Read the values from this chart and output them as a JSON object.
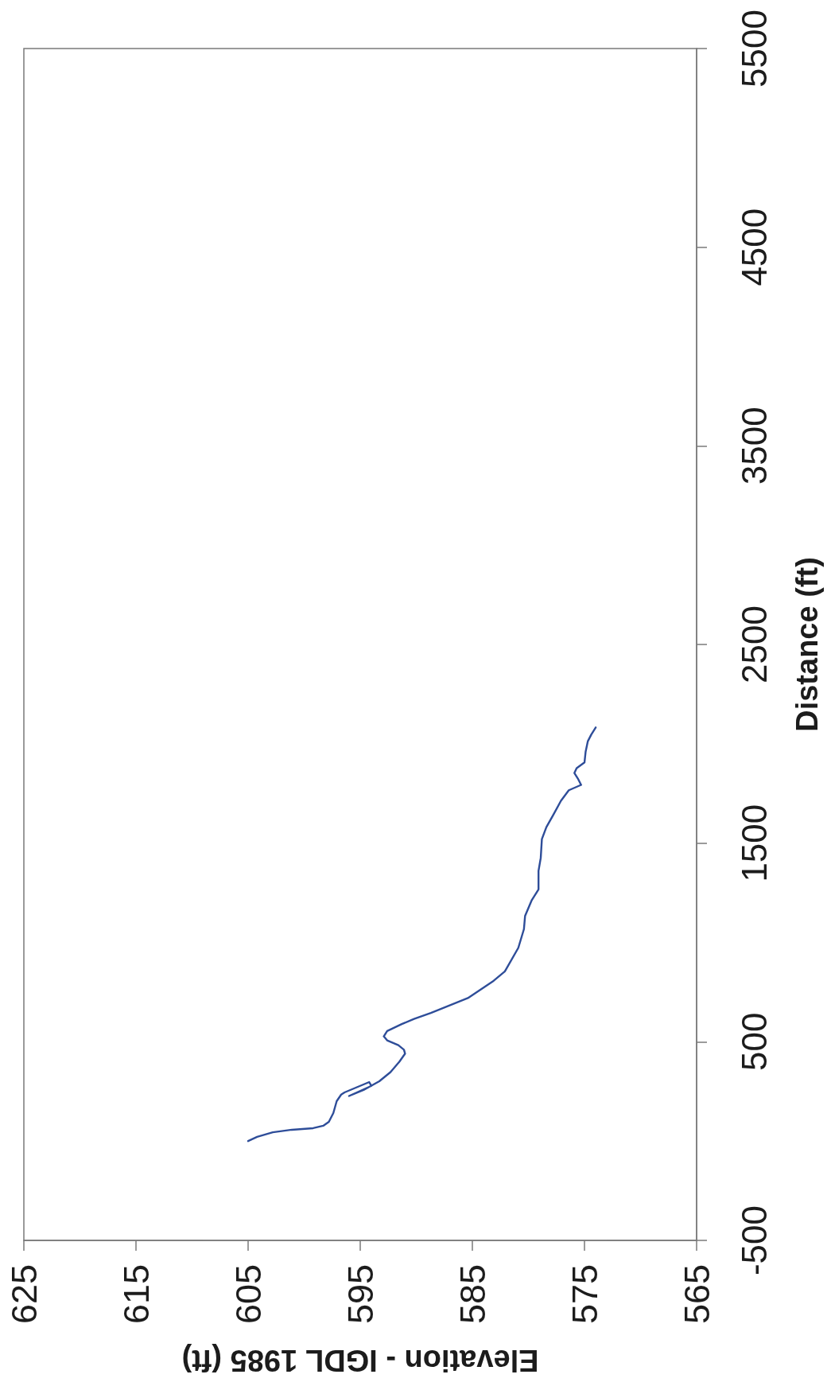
{
  "chart_data": {
    "type": "line",
    "xlabel": "Elevation - IGDL 1985 (ft)",
    "ylabel": "Distance (ft)",
    "xlim": [
      625,
      565
    ],
    "xticks": [
      625,
      615,
      605,
      595,
      585,
      575,
      565
    ],
    "ylim": [
      -500,
      5500
    ],
    "yticks": [
      -500,
      500,
      1500,
      2500,
      3500,
      4500,
      5500
    ],
    "grid": false,
    "marker": "none",
    "line_style": "solid",
    "color": "#2e4d99",
    "x": [
      605.0,
      604.2,
      602.8,
      601.1,
      599.2,
      598.3,
      597.8,
      597.4,
      597.1,
      596.7,
      596.4,
      594.2,
      594.0,
      596.0,
      594.7,
      593.3,
      592.3,
      591.5,
      591.0,
      591.1,
      591.6,
      592.6,
      592.9,
      592.6,
      591.3,
      590.2,
      588.7,
      585.4,
      583.1,
      582.1,
      580.9,
      580.4,
      580.3,
      579.7,
      579.1,
      579.1,
      578.9,
      578.8,
      578.4,
      577.8,
      577.1,
      576.4,
      575.3,
      575.6,
      575.9,
      575.7,
      575.0,
      574.9,
      574.7,
      574.4,
      574.0
    ],
    "values": [
      0,
      21,
      44,
      57,
      65,
      77,
      97,
      141,
      201,
      234,
      245,
      297,
      278,
      227,
      257,
      301,
      347,
      400,
      440,
      460,
      483,
      507,
      527,
      554,
      589,
      615,
      645,
      720,
      807,
      854,
      973,
      1067,
      1133,
      1213,
      1267,
      1360,
      1426,
      1520,
      1580,
      1640,
      1713,
      1766,
      1793,
      1826,
      1853,
      1877,
      1906,
      1959,
      2013,
      2046,
      2082
    ]
  }
}
